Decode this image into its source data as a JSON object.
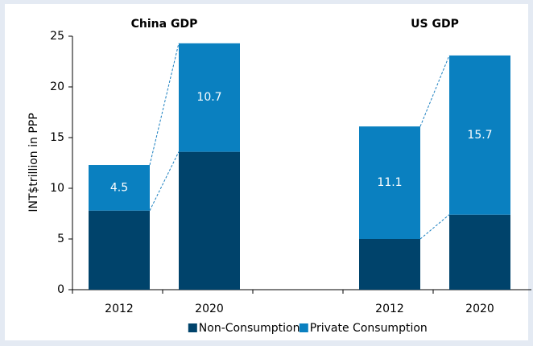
{
  "chart_data": {
    "type": "stacked_bar",
    "annotations": [
      "China GDP",
      "US GDP"
    ],
    "y_label": "INT$trillion in PPP",
    "categories": [
      "2012",
      "2020",
      null,
      "2012",
      "2020"
    ],
    "series": [
      {
        "name": "Non-Consumption",
        "color": "#00436b",
        "values": [
          7.8,
          13.6,
          null,
          5.0,
          7.4
        ],
        "show_labels": false
      },
      {
        "name": "Private Consumption",
        "color": "#0a80c0",
        "values": [
          4.5,
          10.7,
          null,
          11.1,
          15.7
        ],
        "show_labels": true
      }
    ],
    "ylim": [
      0,
      25
    ],
    "yticks": [
      0,
      5,
      10,
      15,
      20,
      25
    ],
    "grid": false,
    "legend": "bottom"
  }
}
